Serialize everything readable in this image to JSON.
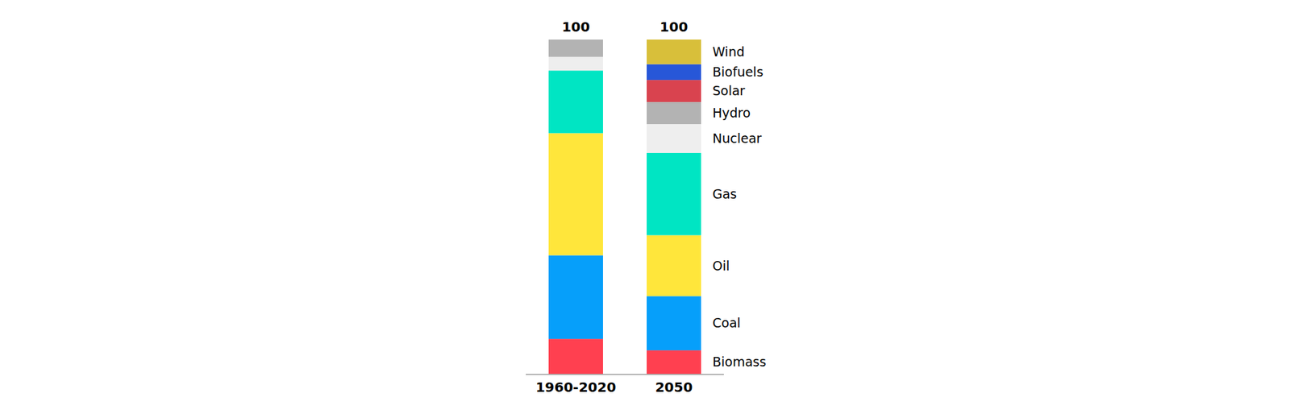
{
  "chart_data": {
    "type": "bar",
    "stacked": true,
    "legend": "right",
    "tick_labels": "x",
    "categories": [
      "1960-2020",
      "2050"
    ],
    "totals": [
      100,
      100
    ],
    "ylim": [
      0,
      100
    ],
    "series": [
      {
        "name": "Biomass",
        "color": "#ff4050",
        "values": [
          10.5,
          7.1
        ]
      },
      {
        "name": "Coal",
        "color": "#069ffa",
        "values": [
          25.0,
          16.2
        ]
      },
      {
        "name": "Oil",
        "color": "#ffe63b",
        "values": [
          36.5,
          18.2
        ]
      },
      {
        "name": "Gas",
        "color": "#00e5c3",
        "values": [
          18.7,
          24.6
        ]
      },
      {
        "name": "Nuclear",
        "color": "#eeeeee",
        "values": [
          4.1,
          8.6
        ]
      },
      {
        "name": "Hydro",
        "color": "#b3b3b3",
        "values": [
          5.2,
          6.6
        ]
      },
      {
        "name": "Solar",
        "color": "#d9434f",
        "values": [
          0,
          6.6
        ]
      },
      {
        "name": "Biofuels",
        "color": "#2757d8",
        "values": [
          0,
          4.7
        ]
      },
      {
        "name": "Wind",
        "color": "#d8bf3a",
        "values": [
          0,
          7.4
        ]
      }
    ]
  }
}
